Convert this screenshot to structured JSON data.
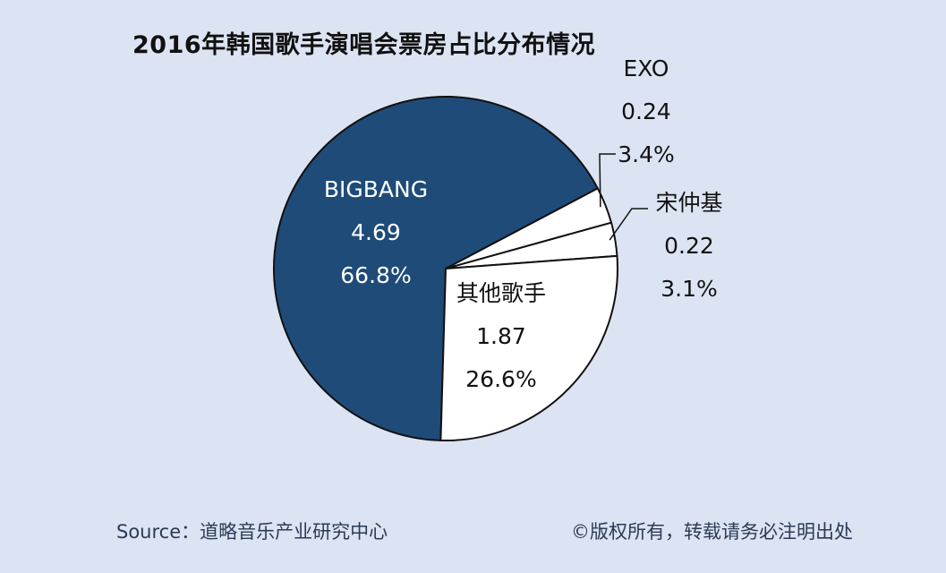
{
  "title": "2016年韩国歌手演唱会票房占比分布情况",
  "chart_data": {
    "type": "pie",
    "title": "2016年韩国歌手演唱会票房占比分布情况",
    "slices": [
      {
        "label": "BIGBANG",
        "value": 4.69,
        "percent": "66.8%",
        "color": "#1f4b78"
      },
      {
        "label": "EXO",
        "value": 0.24,
        "percent": "3.4%",
        "color": "#ffffff"
      },
      {
        "label": "宋仲基",
        "value": 0.22,
        "percent": "3.1%",
        "color": "#ffffff"
      },
      {
        "label": "其他歌手",
        "value": 1.87,
        "percent": "26.6%",
        "color": "#ffffff"
      }
    ],
    "value_labels": [
      "4.69",
      "0.24",
      "0.22",
      "1.87"
    ]
  },
  "footer": {
    "source": "Source：道略音乐产业研究中心",
    "copyright": "©版权所有，转载请务必注明出处"
  }
}
